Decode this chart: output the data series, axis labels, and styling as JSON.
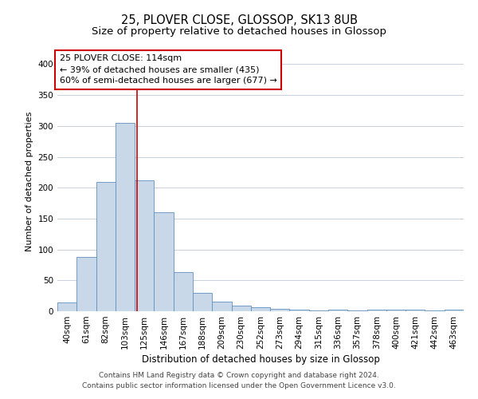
{
  "title": "25, PLOVER CLOSE, GLOSSOP, SK13 8UB",
  "subtitle": "Size of property relative to detached houses in Glossop",
  "xlabel": "Distribution of detached houses by size in Glossop",
  "ylabel": "Number of detached properties",
  "bar_color": "#c8d8e8",
  "bar_edge_color": "#6090c0",
  "grid_color": "#c8d0dc",
  "annotation_box_color": "#ffffff",
  "annotation_box_edge": "#cc0000",
  "vline_color": "#cc0000",
  "footer_line1": "Contains HM Land Registry data © Crown copyright and database right 2024.",
  "footer_line2": "Contains public sector information licensed under the Open Government Licence v3.0.",
  "annotation_line1": "25 PLOVER CLOSE: 114sqm",
  "annotation_line2": "← 39% of detached houses are smaller (435)",
  "annotation_line3": "60% of semi-detached houses are larger (677) →",
  "categories": [
    "40sqm",
    "61sqm",
    "82sqm",
    "103sqm",
    "125sqm",
    "146sqm",
    "167sqm",
    "188sqm",
    "209sqm",
    "230sqm",
    "252sqm",
    "273sqm",
    "294sqm",
    "315sqm",
    "336sqm",
    "357sqm",
    "378sqm",
    "400sqm",
    "421sqm",
    "442sqm",
    "463sqm"
  ],
  "values": [
    14,
    88,
    210,
    305,
    212,
    160,
    63,
    30,
    15,
    9,
    6,
    4,
    2,
    1,
    3,
    1,
    2,
    3,
    2,
    1,
    3
  ],
  "vline_x": 3.62,
  "ylim": [
    0,
    420
  ],
  "yticks": [
    0,
    50,
    100,
    150,
    200,
    250,
    300,
    350,
    400
  ],
  "title_fontsize": 10.5,
  "subtitle_fontsize": 9.5,
  "xlabel_fontsize": 8.5,
  "ylabel_fontsize": 8,
  "tick_fontsize": 7.5,
  "annotation_fontsize": 8,
  "footer_fontsize": 6.5
}
